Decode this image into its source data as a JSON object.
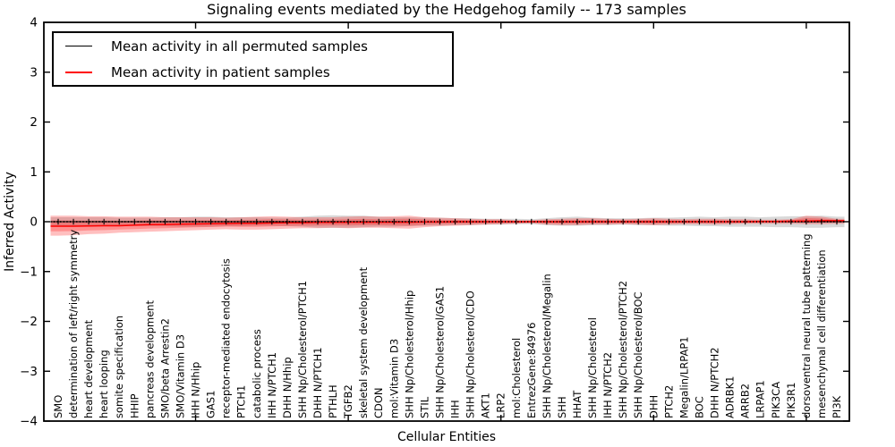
{
  "chart_data": {
    "type": "line",
    "title": "Signaling events mediated by the Hedgehog family -- 173 samples",
    "xlabel": "Cellular Entities",
    "ylabel": "Inferred Activity",
    "ylim": [
      -4,
      4
    ],
    "yticks": [
      4,
      3,
      2,
      1,
      0,
      -1,
      -2,
      -3,
      -4
    ],
    "ytick_labels": [
      "4",
      "3",
      "2",
      "1",
      "0",
      "−1",
      "−2",
      "−3",
      "−4"
    ],
    "xticks_at_ordinals": [
      10,
      20,
      30,
      40,
      50
    ],
    "grid": false,
    "legend_position": "upper left",
    "legend": [
      {
        "label": "Mean activity in all permuted samples",
        "color": "#000000"
      },
      {
        "label": "Mean activity in patient samples",
        "color": "#ff0000"
      }
    ],
    "categories": [
      "SMO",
      "determination of left/right symmetry",
      "heart development",
      "heart looping",
      "somite specification",
      "HHIP",
      "pancreas development",
      "SMO/beta Arrestin2",
      "SMO/Vitamin D3",
      "IHH N/Hhip",
      "GAS1",
      "receptor-mediated endocytosis",
      "PTCH1",
      "catabolic process",
      "IHH N/PTCH1",
      "DHH N/Hhip",
      "SHH Np/Cholesterol/PTCH1",
      "DHH N/PTCH1",
      "PTHLH",
      "TGFB2",
      "skeletal system development",
      "CDON",
      "mol:Vitamin D3",
      "SHH Np/Cholesterol/Hhip",
      "STIL",
      "SHH Np/Cholesterol/GAS1",
      "IHH",
      "SHH Np/Cholesterol/CDO",
      "AKT1",
      "LRP2",
      "mol:Cholesterol",
      "EntrezGene:84976",
      "SHH Np/Cholesterol/Megalin",
      "SHH",
      "HHAT",
      "SHH Np/Cholesterol",
      "IHH N/PTCH2",
      "SHH Np/Cholesterol/PTCH2",
      "SHH Np/Cholesterol/BOC",
      "DHH",
      "PTCH2",
      "Megalin/LRPAP1",
      "BOC",
      "DHH N/PTCH2",
      "ADRBK1",
      "ARRB2",
      "LRPAP1",
      "PIK3CA",
      "PIK3R1",
      "dorsoventral neural tube patterning",
      "mesenchymal cell differentiation",
      "PI3K"
    ],
    "series": [
      {
        "name": "Mean activity in all permuted samples",
        "color": "#000000",
        "style": "dotted-with-tick-markers",
        "values": [
          0,
          0,
          0,
          0,
          0,
          0,
          0,
          0,
          0,
          0,
          0,
          0,
          0,
          0,
          0,
          0,
          0,
          0,
          0,
          0,
          0,
          0,
          0,
          0,
          0,
          0,
          0,
          0,
          0,
          0,
          0,
          0,
          0,
          0,
          0,
          0,
          0,
          0,
          0,
          0,
          0,
          0,
          0,
          0,
          0,
          0,
          0,
          0,
          0,
          0,
          0,
          0
        ]
      },
      {
        "name": "Mean activity in patient samples",
        "color": "#ff0000",
        "style": "solid",
        "values": [
          -0.09,
          -0.09,
          -0.085,
          -0.08,
          -0.08,
          -0.07,
          -0.06,
          -0.055,
          -0.05,
          -0.045,
          -0.04,
          -0.035,
          -0.03,
          -0.03,
          -0.025,
          -0.02,
          -0.02,
          -0.015,
          -0.015,
          -0.01,
          -0.01,
          -0.01,
          -0.01,
          -0.01,
          -0.005,
          -0.005,
          0,
          0,
          0,
          0,
          0,
          0,
          0,
          0,
          0,
          0,
          0,
          0,
          0,
          0,
          0,
          0,
          0,
          0,
          0,
          0,
          0.005,
          0.005,
          0.01,
          0.015,
          0.02,
          0.02
        ]
      }
    ],
    "bands": [
      {
        "name": "permuted samples std band",
        "color": "#9a9a9a",
        "opacity": 0.38,
        "upper": [
          0.09,
          0.09,
          0.09,
          0.09,
          0.08,
          0.08,
          0.08,
          0.09,
          0.09,
          0.1,
          0.1,
          0.09,
          0.09,
          0.09,
          0.08,
          0.08,
          0.1,
          0.12,
          0.13,
          0.12,
          0.12,
          0.1,
          0.09,
          0.09,
          0.08,
          0.08,
          0.07,
          0.07,
          0.06,
          0.06,
          0.06,
          0.05,
          0.07,
          0.09,
          0.1,
          0.08,
          0.07,
          0.07,
          0.07,
          0.08,
          0.08,
          0.09,
          0.1,
          0.09,
          0.1,
          0.1,
          0.09,
          0.1,
          0.11,
          0.11,
          0.12,
          0.1
        ],
        "lower": [
          -0.09,
          -0.09,
          -0.09,
          -0.08,
          -0.08,
          -0.08,
          -0.09,
          -0.09,
          -0.1,
          -0.1,
          -0.1,
          -0.09,
          -0.09,
          -0.08,
          -0.08,
          -0.09,
          -0.1,
          -0.12,
          -0.12,
          -0.12,
          -0.11,
          -0.1,
          -0.1,
          -0.09,
          -0.08,
          -0.08,
          -0.07,
          -0.07,
          -0.06,
          -0.06,
          -0.05,
          -0.05,
          -0.07,
          -0.08,
          -0.08,
          -0.07,
          -0.07,
          -0.06,
          -0.07,
          -0.07,
          -0.08,
          -0.08,
          -0.09,
          -0.09,
          -0.1,
          -0.1,
          -0.1,
          -0.11,
          -0.11,
          -0.12,
          -0.12,
          -0.11
        ]
      },
      {
        "name": "patient samples std band",
        "color": "#ff0000",
        "opacity": 0.25,
        "upper": [
          0.12,
          0.12,
          0.11,
          0.11,
          0.1,
          0.1,
          0.1,
          0.09,
          0.09,
          0.09,
          0.09,
          0.08,
          0.09,
          0.1,
          0.11,
          0.1,
          0.09,
          0.09,
          0.09,
          0.1,
          0.11,
          0.1,
          0.11,
          0.12,
          0.09,
          0.08,
          0.07,
          0.06,
          0.05,
          0.05,
          0.03,
          0.03,
          0.05,
          0.06,
          0.07,
          0.07,
          0.06,
          0.05,
          0.06,
          0.07,
          0.06,
          0.05,
          0.06,
          0.06,
          0.05,
          0.05,
          0.04,
          0.04,
          0.05,
          0.12,
          0.1,
          0.06
        ],
        "lower": [
          -0.28,
          -0.27,
          -0.25,
          -0.24,
          -0.22,
          -0.21,
          -0.2,
          -0.19,
          -0.18,
          -0.17,
          -0.16,
          -0.15,
          -0.16,
          -0.16,
          -0.15,
          -0.14,
          -0.13,
          -0.13,
          -0.12,
          -0.13,
          -0.12,
          -0.12,
          -0.13,
          -0.14,
          -0.11,
          -0.09,
          -0.08,
          -0.07,
          -0.06,
          -0.05,
          -0.04,
          -0.03,
          -0.06,
          -0.07,
          -0.07,
          -0.06,
          -0.06,
          -0.05,
          -0.06,
          -0.07,
          -0.06,
          -0.05,
          -0.05,
          -0.06,
          -0.05,
          -0.04,
          -0.04,
          -0.04,
          -0.04,
          -0.05,
          -0.05,
          -0.04
        ]
      }
    ]
  }
}
